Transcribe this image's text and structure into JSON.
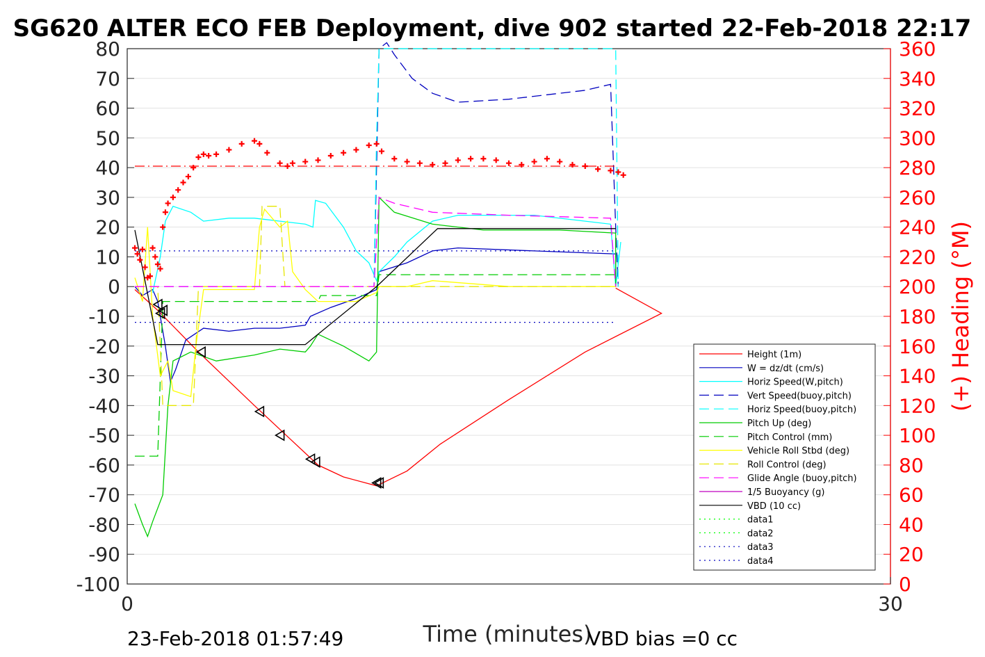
{
  "chart_data": {
    "type": "line",
    "title": "SG620 ALTER ECO FEB Deployment, dive 902 started 22-Feb-2018 22:17",
    "xlabel": "Time (minutes)",
    "ylabel_right": "(+) Heading (°M)",
    "xlim": [
      0,
      30
    ],
    "ylim_left": [
      -100,
      80
    ],
    "ylim_right": [
      0,
      360
    ],
    "x_ticks": [
      "0",
      "30"
    ],
    "y_ticks_left": [
      "80",
      "70",
      "60",
      "50",
      "40",
      "30",
      "20",
      "10",
      "0",
      "-10",
      "-20",
      "-30",
      "-40",
      "-50",
      "-60",
      "-70",
      "-80",
      "-90",
      "-100"
    ],
    "y_ticks_right": [
      "360",
      "340",
      "320",
      "300",
      "280",
      "260",
      "240",
      "220",
      "200",
      "180",
      "160",
      "140",
      "120",
      "100",
      "80",
      "60",
      "40",
      "20",
      "0"
    ],
    "grid": true,
    "legend_position": "bottom-right",
    "footer_left": "23-Feb-2018 01:57:49",
    "footer_right": "VBD bias =0 cc",
    "colors": {
      "height": "#ff0000",
      "w": "#0000bf",
      "horiz_w": "#00ffff",
      "vert_buoy": "#0000bf",
      "horiz_buoy": "#00ffff",
      "pitch": "#00cc00",
      "pitch_ctrl": "#00cc00",
      "roll": "#ffff00",
      "roll_ctrl": "#e6e600",
      "glide": "#ff00ff",
      "buoy": "#bf00bf",
      "vbd": "#000000",
      "heading": "#ff0000",
      "data12": "#00ff00",
      "data34": "#0000bf"
    },
    "series": [
      {
        "name": "Height (1m)",
        "style": "solid",
        "color_key": "height",
        "points": [
          [
            0.3,
            -1
          ],
          [
            1.2,
            -8
          ],
          [
            2.8,
            -22
          ],
          [
            5,
            -40
          ],
          [
            6.5,
            -52
          ],
          [
            7.5,
            -60
          ],
          [
            8.5,
            -64
          ],
          [
            9.8,
            -67
          ],
          [
            11,
            -62
          ],
          [
            12.3,
            -53
          ],
          [
            15,
            -38
          ],
          [
            18,
            -22
          ],
          [
            21,
            -9
          ],
          [
            19.2,
            -0.5
          ]
        ]
      },
      {
        "name": "W = dz/dt (cm/s)",
        "style": "solid",
        "color_key": "w",
        "points": [
          [
            0.3,
            0
          ],
          [
            0.6,
            -3
          ],
          [
            1.0,
            -1
          ],
          [
            1.2,
            -5
          ],
          [
            1.5,
            -20
          ],
          [
            1.7,
            -32
          ],
          [
            1.9,
            -28
          ],
          [
            2.3,
            -18
          ],
          [
            3.0,
            -14
          ],
          [
            4.0,
            -15
          ],
          [
            5,
            -14
          ],
          [
            6,
            -14
          ],
          [
            7,
            -13
          ],
          [
            7.2,
            -10
          ],
          [
            8,
            -7
          ],
          [
            9,
            -4
          ],
          [
            9.8,
            -1
          ],
          [
            9.9,
            5
          ],
          [
            11,
            8
          ],
          [
            12,
            12
          ],
          [
            13,
            13
          ],
          [
            16,
            12
          ],
          [
            19.2,
            11
          ],
          [
            19.2,
            0
          ]
        ]
      },
      {
        "name": "Horiz Speed(W,pitch)",
        "style": "solid",
        "color_key": "horiz_w",
        "points": [
          [
            1.0,
            -2
          ],
          [
            1.3,
            10
          ],
          [
            1.5,
            22
          ],
          [
            1.8,
            27
          ],
          [
            2.5,
            25
          ],
          [
            3,
            22
          ],
          [
            4,
            23
          ],
          [
            5,
            23
          ],
          [
            6,
            22
          ],
          [
            7,
            21
          ],
          [
            7.3,
            20
          ],
          [
            7.4,
            29
          ],
          [
            7.8,
            28
          ],
          [
            8.5,
            20
          ],
          [
            9,
            12
          ],
          [
            9.5,
            8
          ],
          [
            9.8,
            2
          ],
          [
            9.9,
            5
          ],
          [
            10.5,
            10
          ],
          [
            11,
            15
          ],
          [
            12,
            22
          ],
          [
            13,
            24
          ],
          [
            16,
            24
          ],
          [
            18,
            22
          ],
          [
            19,
            21
          ],
          [
            19.2,
            0
          ],
          [
            19.4,
            15
          ]
        ]
      },
      {
        "name": "Vert Speed(buoy,pitch)",
        "style": "dashed",
        "color_key": "vert_buoy",
        "points": [
          [
            0.3,
            0
          ],
          [
            9.7,
            0
          ],
          [
            9.8,
            40
          ],
          [
            9.9,
            80
          ],
          [
            10.2,
            82
          ],
          [
            10.5,
            78
          ],
          [
            11.2,
            70
          ],
          [
            12,
            65
          ],
          [
            13,
            62
          ],
          [
            15,
            63
          ],
          [
            17,
            65
          ],
          [
            18,
            66
          ],
          [
            19,
            68
          ],
          [
            19.2,
            20
          ],
          [
            19.3,
            0
          ]
        ]
      },
      {
        "name": "Horiz Speed(buoy,pitch)",
        "style": "dashed",
        "color_key": "horiz_buoy",
        "points": [
          [
            0.3,
            0
          ],
          [
            9.7,
            0
          ],
          [
            9.8,
            50
          ],
          [
            9.9,
            80
          ],
          [
            19.2,
            80
          ],
          [
            19.3,
            0
          ]
        ]
      },
      {
        "name": "Pitch Up (deg)",
        "style": "solid",
        "color_key": "pitch",
        "points": [
          [
            0.3,
            -73
          ],
          [
            0.6,
            -80
          ],
          [
            0.8,
            -84
          ],
          [
            1.0,
            -79
          ],
          [
            1.4,
            -70
          ],
          [
            1.6,
            -40
          ],
          [
            1.8,
            -25
          ],
          [
            2.5,
            -22
          ],
          [
            3.5,
            -25
          ],
          [
            5,
            -23
          ],
          [
            6,
            -21
          ],
          [
            7,
            -22
          ],
          [
            7.2,
            -20
          ],
          [
            7.5,
            -16
          ],
          [
            8.5,
            -20
          ],
          [
            9.5,
            -25
          ],
          [
            9.8,
            -22
          ],
          [
            9.9,
            30
          ],
          [
            10.5,
            25
          ],
          [
            12,
            21
          ],
          [
            14,
            19
          ],
          [
            17,
            19
          ],
          [
            19.2,
            18
          ],
          [
            19.2,
            0
          ]
        ]
      },
      {
        "name": "Pitch Control (mm)",
        "style": "dashed",
        "color_key": "pitch_ctrl",
        "points": [
          [
            0.3,
            -57
          ],
          [
            1.2,
            -57
          ],
          [
            1.4,
            -5
          ],
          [
            7.5,
            -5
          ],
          [
            7.6,
            -3
          ],
          [
            9.8,
            -3
          ],
          [
            9.9,
            4
          ],
          [
            19.2,
            4
          ]
        ]
      },
      {
        "name": "Vehicle Roll Stbd (deg)",
        "style": "solid",
        "color_key": "roll",
        "points": [
          [
            0.3,
            3
          ],
          [
            0.6,
            -5
          ],
          [
            0.8,
            20
          ],
          [
            1.0,
            -10
          ],
          [
            1.3,
            -30
          ],
          [
            1.6,
            -25
          ],
          [
            1.8,
            -35
          ],
          [
            2.5,
            -37
          ],
          [
            2.7,
            -20
          ],
          [
            3.0,
            -1
          ],
          [
            5,
            -1
          ],
          [
            5.2,
            20
          ],
          [
            5.4,
            26
          ],
          [
            6,
            20
          ],
          [
            6.3,
            22
          ],
          [
            6.5,
            5
          ],
          [
            7,
            -1
          ],
          [
            7.5,
            -5
          ],
          [
            9,
            -5
          ],
          [
            9.8,
            -2
          ],
          [
            9.9,
            0
          ],
          [
            11,
            0
          ],
          [
            12,
            2
          ],
          [
            15,
            0
          ],
          [
            19.2,
            0
          ]
        ]
      },
      {
        "name": "Roll Control (deg)",
        "style": "dashed",
        "color_key": "roll_ctrl",
        "points": [
          [
            0.3,
            0
          ],
          [
            1.2,
            0
          ],
          [
            1.4,
            -40
          ],
          [
            2.6,
            -40
          ],
          [
            2.8,
            0
          ],
          [
            5.2,
            0
          ],
          [
            5.3,
            27
          ],
          [
            6,
            27
          ],
          [
            6.2,
            0
          ],
          [
            9.8,
            0
          ],
          [
            19.2,
            0
          ]
        ]
      },
      {
        "name": "Glide Angle (buoy,pitch)",
        "style": "dashed",
        "color_key": "glide",
        "points": [
          [
            0.3,
            0
          ],
          [
            9.7,
            0
          ],
          [
            9.9,
            30
          ],
          [
            10.5,
            28
          ],
          [
            12,
            25
          ],
          [
            15,
            24
          ],
          [
            19,
            23
          ],
          [
            19.2,
            0
          ]
        ]
      },
      {
        "name": "1/5 Buoyancy (g)",
        "style": "solid",
        "color_key": "buoy",
        "points": []
      },
      {
        "name": "VBD (10 cc)",
        "style": "solid",
        "color_key": "vbd",
        "points": [
          [
            0.3,
            19
          ],
          [
            1.2,
            -19.5
          ],
          [
            7,
            -19.5
          ],
          [
            9.8,
            0
          ],
          [
            12.2,
            19.5
          ],
          [
            19.2,
            19.5
          ]
        ]
      },
      {
        "name": "data1",
        "style": "dotted",
        "color_key": "data12",
        "points": []
      },
      {
        "name": "data2",
        "style": "dotted",
        "color_key": "data12",
        "points": []
      },
      {
        "name": "data3",
        "style": "dotted",
        "color_key": "data34",
        "points": [
          [
            0.3,
            12
          ],
          [
            19.2,
            12
          ]
        ]
      },
      {
        "name": "data4",
        "style": "dotted",
        "color_key": "data34",
        "points": [
          [
            0.3,
            -12
          ],
          [
            19.2,
            -12
          ]
        ]
      }
    ],
    "heading_mean": {
      "color_key": "heading",
      "style": "dashdot",
      "points": [
        [
          0.3,
          281
        ],
        [
          19.2,
          281
        ]
      ]
    },
    "heading": {
      "color_key": "heading",
      "marker": "+",
      "axis": "right",
      "points": [
        [
          0.3,
          226
        ],
        [
          0.4,
          222
        ],
        [
          0.5,
          218
        ],
        [
          0.6,
          225
        ],
        [
          0.7,
          213
        ],
        [
          0.8,
          206
        ],
        [
          0.9,
          207
        ],
        [
          1.0,
          226
        ],
        [
          1.1,
          220
        ],
        [
          1.2,
          215
        ],
        [
          1.3,
          212
        ],
        [
          1.4,
          240
        ],
        [
          1.5,
          250
        ],
        [
          1.6,
          256
        ],
        [
          1.8,
          260
        ],
        [
          2.0,
          265
        ],
        [
          2.2,
          270
        ],
        [
          2.4,
          274
        ],
        [
          2.6,
          280
        ],
        [
          2.8,
          287
        ],
        [
          3.0,
          289
        ],
        [
          3.2,
          288
        ],
        [
          3.5,
          289
        ],
        [
          4,
          292
        ],
        [
          4.5,
          296
        ],
        [
          5,
          298
        ],
        [
          5.2,
          296
        ],
        [
          5.5,
          290
        ],
        [
          6,
          283
        ],
        [
          6.3,
          281
        ],
        [
          6.5,
          283
        ],
        [
          7,
          284
        ],
        [
          7.5,
          285
        ],
        [
          8,
          288
        ],
        [
          8.5,
          290
        ],
        [
          9,
          292
        ],
        [
          9.5,
          295
        ],
        [
          9.8,
          296
        ],
        [
          10,
          291
        ],
        [
          10.5,
          286
        ],
        [
          11,
          284
        ],
        [
          11.5,
          283
        ],
        [
          12,
          282
        ],
        [
          12.5,
          283
        ],
        [
          13,
          285
        ],
        [
          13.5,
          286
        ],
        [
          14,
          286
        ],
        [
          14.5,
          285
        ],
        [
          15,
          283
        ],
        [
          15.5,
          282
        ],
        [
          16,
          284
        ],
        [
          16.5,
          286
        ],
        [
          17,
          284
        ],
        [
          17.5,
          282
        ],
        [
          18,
          281
        ],
        [
          18.5,
          279
        ],
        [
          19,
          278
        ],
        [
          19.3,
          277
        ],
        [
          19.5,
          275
        ]
      ]
    },
    "markers": {
      "marker": "triangle",
      "color_key": "vbd",
      "points": [
        [
          1.2,
          -6
        ],
        [
          1.3,
          -9
        ],
        [
          1.4,
          -8
        ],
        [
          2.9,
          -22
        ],
        [
          5.2,
          -42
        ],
        [
          6,
          -50
        ],
        [
          7.2,
          -58
        ],
        [
          7.4,
          -59
        ],
        [
          9.8,
          -66
        ],
        [
          9.9,
          -66
        ]
      ]
    }
  }
}
